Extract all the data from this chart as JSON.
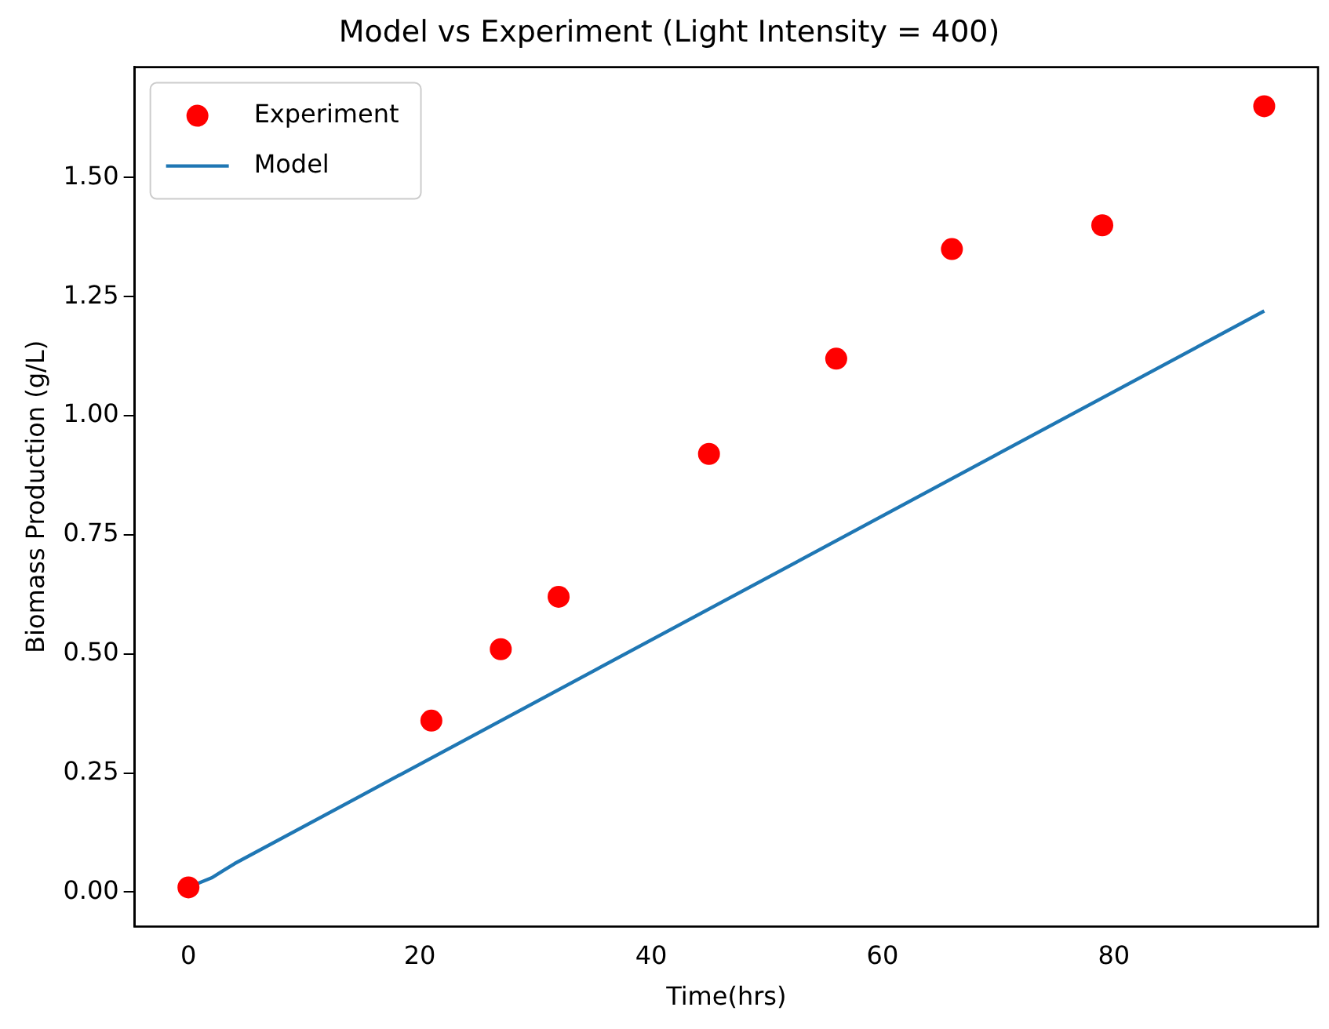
{
  "chart_data": {
    "type": "line",
    "title": "Model vs Experiment (Light Intensity = 400)",
    "xlabel": "Time(hrs)",
    "ylabel": "Biomass Production (g/L)",
    "xlim": [
      -4.65,
      97.65
    ],
    "xticks": [
      0,
      20,
      40,
      60,
      80
    ],
    "ylim": [
      -0.072,
      1.732
    ],
    "yticks": [
      {
        "value": 0,
        "label": "0.00"
      },
      {
        "value": 0.25,
        "label": "0.25"
      },
      {
        "value": 0.5,
        "label": "0.50"
      },
      {
        "value": 0.75,
        "label": "0.75"
      },
      {
        "value": 1,
        "label": "1.00"
      },
      {
        "value": 1.25,
        "label": "1.25"
      },
      {
        "value": 1.5,
        "label": "1.50"
      }
    ],
    "grid": false,
    "legend": "top left",
    "series": [
      {
        "name": "Experiment",
        "type": "scatter",
        "marker": "circle",
        "color": "#ff0000",
        "x": [
          0,
          21,
          27,
          32,
          45,
          56,
          66,
          79,
          93
        ],
        "values": [
          0.01,
          0.36,
          0.51,
          0.62,
          0.92,
          1.12,
          1.35,
          1.4,
          1.65
        ]
      },
      {
        "name": "Model",
        "type": "line",
        "marker": "none",
        "color": "#1f77b4",
        "x": [
          0,
          1,
          2,
          3,
          4,
          93
        ],
        "values": [
          0.01,
          0.02,
          0.03,
          0.045,
          0.06,
          1.22
        ]
      }
    ]
  }
}
